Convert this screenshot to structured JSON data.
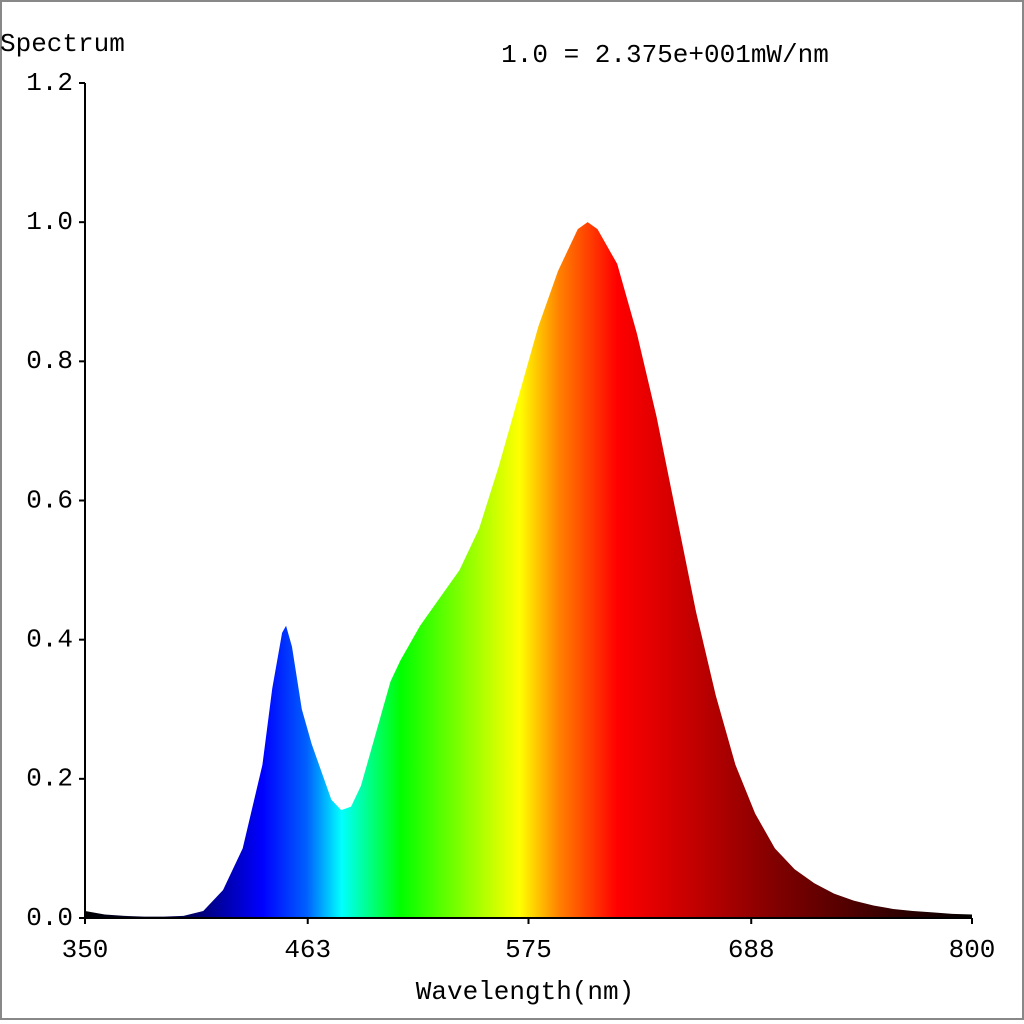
{
  "chart_data": {
    "type": "area",
    "title": "Spectrum",
    "subtitle": "1.0 = 2.375e+001mW/nm",
    "x_label": "Wavelength(nm)",
    "x": [
      350,
      360,
      370,
      380,
      390,
      400,
      410,
      420,
      430,
      440,
      445,
      450,
      452,
      455,
      460,
      465,
      470,
      475,
      480,
      485,
      490,
      495,
      500,
      505,
      510,
      520,
      530,
      540,
      550,
      560,
      570,
      580,
      590,
      600,
      605,
      610,
      620,
      630,
      640,
      650,
      660,
      670,
      680,
      690,
      700,
      710,
      720,
      730,
      740,
      750,
      760,
      770,
      780,
      790,
      800
    ],
    "values": [
      0.01,
      0.005,
      0.003,
      0.002,
      0.002,
      0.003,
      0.01,
      0.04,
      0.1,
      0.22,
      0.33,
      0.41,
      0.42,
      0.39,
      0.3,
      0.25,
      0.21,
      0.17,
      0.155,
      0.16,
      0.19,
      0.24,
      0.29,
      0.34,
      0.37,
      0.42,
      0.46,
      0.5,
      0.56,
      0.65,
      0.75,
      0.85,
      0.93,
      0.99,
      1.0,
      0.99,
      0.94,
      0.84,
      0.72,
      0.58,
      0.44,
      0.32,
      0.22,
      0.15,
      0.1,
      0.07,
      0.05,
      0.035,
      0.025,
      0.018,
      0.013,
      0.01,
      0.008,
      0.006,
      0.005
    ],
    "xlim": [
      350,
      800
    ],
    "xticks": [
      350,
      463,
      575,
      688,
      800
    ],
    "ylim": [
      0,
      1.2
    ],
    "yticks": [
      {
        "value": 0,
        "label": "0.0"
      },
      {
        "value": 0.2,
        "label": "0.2"
      },
      {
        "value": 0.4,
        "label": "0.4"
      },
      {
        "value": 0.6,
        "label": "0.6"
      },
      {
        "value": 0.8,
        "label": "0.8"
      },
      {
        "value": 1,
        "label": "1.0"
      },
      {
        "value": 1.2,
        "label": "1.2"
      }
    ],
    "grid": false
  }
}
